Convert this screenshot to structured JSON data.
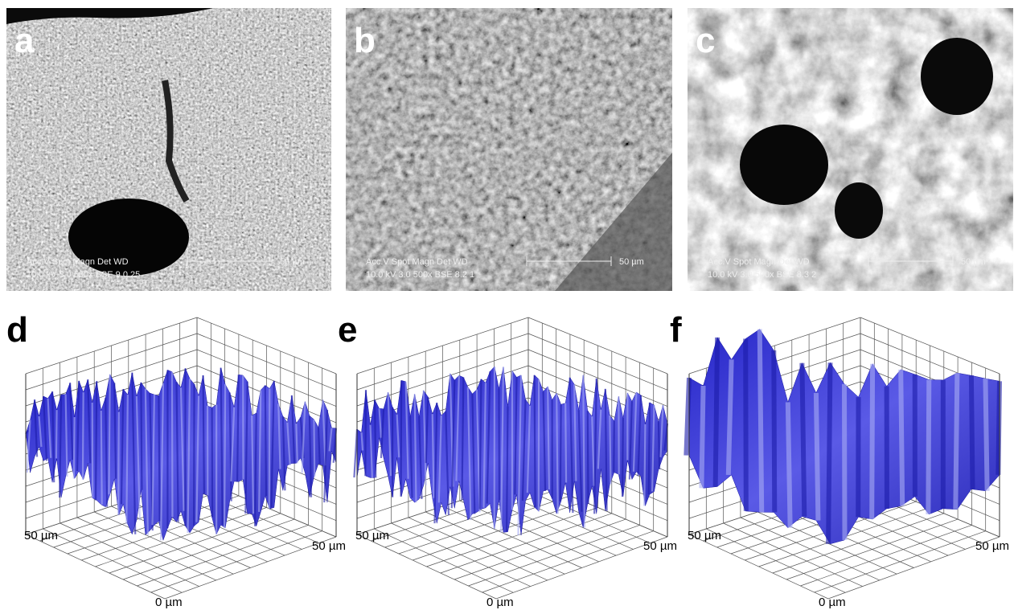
{
  "panels": [
    {
      "label": "a",
      "info": {
        "header": "Acc.V  Spot Magn    Det  WD",
        "values": "10.0 kV 3.0   500x    BSE 9.0   25",
        "scale": "50 µm"
      }
    },
    {
      "label": "b",
      "info": {
        "header": "Acc.V  Spot Magn    Det  WD",
        "values": "10.0 kV 3.0   500x    BSE 8.2   1",
        "scale": "50 µm"
      }
    },
    {
      "label": "c",
      "info": {
        "header": "Acc.V  Spot Magn    Det  WD",
        "values": "10.0 kV 3.0   500x    BSE 8.3   2",
        "scale": "50 µm"
      }
    },
    {
      "label": "d",
      "axis_left": "50 µm",
      "axis_right": "50 µm",
      "axis_origin": "0 µm"
    },
    {
      "label": "e",
      "axis_left": "50 µm",
      "axis_right": "50 µm",
      "axis_origin": "0 µm"
    },
    {
      "label": "f",
      "axis_left": "50 µm",
      "axis_right": "50 µm",
      "axis_origin": "0 µm"
    }
  ]
}
